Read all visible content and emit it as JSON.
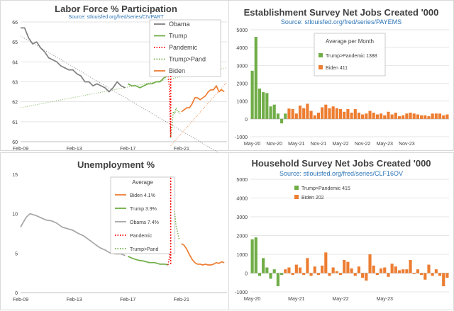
{
  "chart_data": [
    {
      "type": "line",
      "title": "Labor Force % Participation",
      "source": "Source: stlouisfed.org/fred/series/CIVPART",
      "ylim": [
        60,
        66
      ],
      "y_ticks": [
        "60",
        "61",
        "62",
        "63",
        "64",
        "65",
        "66"
      ],
      "x_ticks": [
        "Feb-09",
        "Feb-13",
        "Feb-17",
        "Feb-21"
      ],
      "grid": true,
      "legend_position": "top-right",
      "series": [
        {
          "name": "Obama",
          "color": "#7f7f7f",
          "style": "solid",
          "x": [
            2009.1,
            2009.4,
            2009.7,
            2010.0,
            2010.3,
            2010.6,
            2010.9,
            2011.2,
            2011.5,
            2011.8,
            2012.1,
            2012.4,
            2012.7,
            2013.0,
            2013.3,
            2013.6,
            2013.9,
            2014.2,
            2014.5,
            2014.8,
            2015.1,
            2015.4,
            2015.7,
            2016.0,
            2016.3,
            2016.6,
            2016.9
          ],
          "y": [
            65.7,
            65.7,
            65.2,
            64.9,
            65.0,
            64.7,
            64.5,
            64.2,
            64.1,
            64.0,
            63.8,
            63.7,
            63.6,
            63.6,
            63.4,
            63.3,
            63.0,
            63.0,
            62.8,
            62.9,
            62.8,
            62.7,
            62.5,
            62.7,
            63.0,
            62.8,
            62.7
          ]
        },
        {
          "name": "Trump",
          "color": "#70ad47",
          "style": "solid",
          "x": [
            2017.1,
            2017.4,
            2017.7,
            2018.0,
            2018.3,
            2018.6,
            2018.9,
            2019.2,
            2019.5,
            2019.8,
            2020.1
          ],
          "y": [
            62.9,
            62.8,
            62.8,
            62.7,
            62.8,
            62.9,
            62.9,
            63.0,
            63.0,
            63.2,
            63.3
          ]
        },
        {
          "name": "Pandemic",
          "color": "#ff0000",
          "style": "dotted",
          "x": [
            2020.1,
            2020.2,
            2020.3
          ],
          "y": [
            63.4,
            62.7,
            60.2
          ]
        },
        {
          "name": "Trump>Pand",
          "color": "#70ad47",
          "style": "dotted",
          "x": [
            2020.3,
            2020.4,
            2020.5,
            2020.6,
            2020.7,
            2020.8,
            2020.9,
            2021.0
          ],
          "y": [
            60.2,
            60.8,
            61.5,
            61.4,
            61.7,
            61.5,
            61.5,
            61.4
          ]
        },
        {
          "name": "Biden",
          "color": "#ed7d31",
          "style": "solid",
          "x": [
            2021.1,
            2021.3,
            2021.5,
            2021.7,
            2021.9,
            2022.1,
            2022.3,
            2022.5,
            2022.7,
            2022.9,
            2023.1,
            2023.3,
            2023.5,
            2023.7,
            2023.9,
            2024.1,
            2024.3
          ],
          "y": [
            61.5,
            61.6,
            61.7,
            61.7,
            61.9,
            62.2,
            62.2,
            62.1,
            62.2,
            62.3,
            62.5,
            62.6,
            62.6,
            62.8,
            62.5,
            62.6,
            62.5
          ]
        }
      ],
      "trendlines": [
        {
          "color": "#7f7f7f",
          "x": [
            2009.1,
            2024.5
          ],
          "y": [
            65.3,
            59.2
          ]
        },
        {
          "color": "#70ad47",
          "x": [
            2009.1,
            2024.5
          ],
          "y": [
            61.7,
            63.7
          ]
        },
        {
          "color": "#ed7d31",
          "x": [
            2020.3,
            2024.5
          ],
          "y": [
            59.8,
            63.0
          ]
        }
      ]
    },
    {
      "type": "bar",
      "title": "Establishment Survey Net Jobs Created '000",
      "source": "Source: stlouisfed.org/fred/series/PAYEMS",
      "ylim": [
        -1000,
        5000
      ],
      "y_ticks": [
        "-1000",
        "0",
        "1000",
        "2000",
        "3000",
        "4000",
        "5000"
      ],
      "x_ticks": [
        "May-20",
        "Nov-20",
        "May-21",
        "Nov-21",
        "May-22",
        "Nov-22",
        "May-23",
        "Nov-23"
      ],
      "legend_title": "Average per Month",
      "legend_position": "top-right",
      "series": [
        {
          "name": "Trump>Pandemic 1388",
          "color": "#70ad47",
          "values": [
            2700,
            4600,
            1700,
            1500,
            1450,
            700,
            800,
            300,
            -250,
            300
          ]
        },
        {
          "name": "Biden 411",
          "color": "#ed7d31",
          "values": [
            580,
            550,
            300,
            750,
            600,
            850,
            450,
            200,
            350,
            650,
            800,
            600,
            700,
            600,
            550,
            400,
            550,
            350,
            550,
            350,
            250,
            300,
            450,
            350,
            250,
            300,
            200,
            400,
            250,
            350,
            150,
            200,
            300,
            350,
            300,
            250,
            200,
            200,
            150,
            300,
            300,
            300,
            200,
            250
          ]
        }
      ]
    },
    {
      "type": "line",
      "title": "Unemployment %",
      "ylim": [
        0,
        15
      ],
      "y_ticks": [
        "0",
        "5",
        "10",
        "15"
      ],
      "x_ticks": [
        "Feb-09",
        "Feb-13",
        "Feb-17",
        "Feb-21"
      ],
      "legend_title": "Average",
      "legend_position": "top-right",
      "series": [
        {
          "name": "Biden 4.1%",
          "color": "#ed7d31",
          "style": "solid",
          "x": [
            2021.1,
            2021.3,
            2021.5,
            2021.7,
            2021.9,
            2022.1,
            2022.3,
            2022.5,
            2022.7,
            2022.9,
            2023.1,
            2023.3,
            2023.5,
            2023.7,
            2023.9,
            2024.1,
            2024.3
          ],
          "y": [
            6.2,
            6.0,
            5.5,
            4.8,
            4.2,
            3.8,
            3.6,
            3.6,
            3.5,
            3.6,
            3.5,
            3.5,
            3.6,
            3.8,
            3.7,
            3.9,
            3.8
          ]
        },
        {
          "name": "Trump 3.9%",
          "color": "#70ad47",
          "style": "solid",
          "x": [
            2017.1,
            2017.5,
            2017.9,
            2018.3,
            2018.7,
            2019.1,
            2019.5,
            2019.9,
            2020.1
          ],
          "y": [
            4.6,
            4.3,
            4.1,
            4.0,
            3.8,
            3.8,
            3.6,
            3.6,
            3.5
          ]
        },
        {
          "name": "Obama 7.4%",
          "color": "#a5a5a5",
          "style": "solid",
          "x": [
            2009.1,
            2009.5,
            2009.8,
            2010.2,
            2010.6,
            2011.0,
            2011.4,
            2011.8,
            2012.2,
            2012.6,
            2013.0,
            2013.4,
            2013.8,
            2014.2,
            2014.6,
            2015.0,
            2015.4,
            2015.8,
            2016.2,
            2016.6,
            2016.9
          ],
          "y": [
            8.3,
            9.5,
            10.0,
            9.8,
            9.5,
            9.2,
            9.1,
            8.8,
            8.3,
            8.1,
            7.9,
            7.5,
            7.2,
            6.7,
            6.2,
            5.7,
            5.4,
            5.0,
            4.9,
            4.9,
            4.7
          ]
        },
        {
          "name": "Pandemic",
          "color": "#ff0000",
          "style": "dotted",
          "x": [
            2020.1,
            2020.2,
            2020.3
          ],
          "y": [
            3.5,
            4.4,
            14.7
          ]
        },
        {
          "name": "Trump>Pand",
          "color": "#70ad47",
          "style": "dotted",
          "x": [
            2020.3,
            2020.4,
            2020.5,
            2020.6,
            2020.7,
            2020.8,
            2020.9,
            2021.0
          ],
          "y": [
            14.7,
            13.2,
            11.0,
            10.2,
            8.4,
            7.8,
            6.9,
            6.7
          ]
        }
      ]
    },
    {
      "type": "bar",
      "title": "Household Survey Net Jobs Created '000",
      "source": "Source: stlouisfed.org/fred/series/CLF16OV",
      "ylim": [
        -1000,
        5000
      ],
      "y_ticks": [
        "-1000",
        "0",
        "1000",
        "2000",
        "3000",
        "4000",
        "5000"
      ],
      "x_ticks": [
        "May-20",
        "May-21",
        "May-22",
        "May-23"
      ],
      "legend_position": "top-left",
      "series": [
        {
          "name": "Trump>Pandemic 415",
          "color": "#70ad47",
          "values": [
            1800,
            1900,
            -150,
            800,
            300,
            -300,
            200,
            -700,
            -100
          ]
        },
        {
          "name": "Biden 202",
          "color": "#ed7d31",
          "values": [
            200,
            300,
            -100,
            450,
            300,
            -100,
            800,
            -150,
            350,
            -100,
            400,
            1100,
            -150,
            300,
            100,
            -100,
            700,
            600,
            250,
            -150,
            350,
            -250,
            -400,
            1000,
            400,
            -100,
            250,
            300,
            -200,
            500,
            350,
            150,
            200,
            200,
            700,
            -50,
            200,
            -100,
            -350,
            450,
            -150,
            200,
            -150,
            -700,
            -250
          ]
        }
      ]
    }
  ]
}
